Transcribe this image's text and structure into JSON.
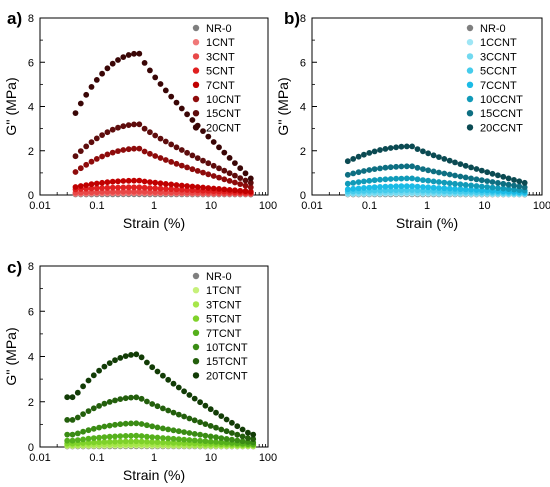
{
  "chart_data": [
    {
      "type": "scatter",
      "panel_label": "a)",
      "xlabel": "Strain (%)",
      "ylabel": "G'' (MPa)",
      "x_scale": "log",
      "xlim": [
        0.01,
        100
      ],
      "ylim": [
        0,
        8
      ],
      "x_ticks": [
        "0.01",
        "0.1",
        "1",
        "10",
        "100"
      ],
      "y_ticks": [
        "0",
        "2",
        "4",
        "6",
        "8"
      ],
      "legend_position": "top-right",
      "grid": false,
      "series": [
        {
          "name": "NR-0",
          "color": "#7f7f7f",
          "peak": 0.03,
          "base": 0.02,
          "tail": 0.02
        },
        {
          "name": "1CNT",
          "color": "#f07878",
          "peak": 0.08,
          "base": 0.05,
          "tail": 0.04
        },
        {
          "name": "3CNT",
          "color": "#e84848",
          "peak": 0.15,
          "base": 0.1,
          "tail": 0.06
        },
        {
          "name": "5CNT",
          "color": "#e02020",
          "peak": 0.35,
          "base": 0.25,
          "tail": 0.1
        },
        {
          "name": "7CNT",
          "color": "#c00000",
          "peak": 0.65,
          "base": 0.35,
          "tail": 0.15
        },
        {
          "name": "10CNT",
          "color": "#8e0b0b",
          "peak": 2.1,
          "base": 1.0,
          "tail": 0.35
        },
        {
          "name": "15CNT",
          "color": "#5e0c0c",
          "peak": 3.2,
          "base": 1.7,
          "tail": 0.55
        },
        {
          "name": "20CNT",
          "color": "#3a0606",
          "peak": 6.4,
          "base": 3.6,
          "tail": 0.75
        }
      ]
    },
    {
      "type": "scatter",
      "panel_label": "b)",
      "xlabel": "Strain (%)",
      "ylabel": "G'' (MPa)",
      "x_scale": "log",
      "xlim": [
        0.01,
        100
      ],
      "ylim": [
        0,
        8
      ],
      "x_ticks": [
        "0.01",
        "0.1",
        "1",
        "10",
        "100"
      ],
      "y_ticks": [
        "0",
        "2",
        "4",
        "6",
        "8"
      ],
      "legend_position": "top-right",
      "grid": false,
      "series": [
        {
          "name": "NR-0",
          "color": "#7f7f7f",
          "peak": 0.03,
          "base": 0.02,
          "tail": 0.02
        },
        {
          "name": "1CCNT",
          "color": "#9fe6f5",
          "peak": 0.06,
          "base": 0.04,
          "tail": 0.03
        },
        {
          "name": "3CCNT",
          "color": "#72d9f0",
          "peak": 0.12,
          "base": 0.08,
          "tail": 0.05
        },
        {
          "name": "5CCNT",
          "color": "#45ccec",
          "peak": 0.22,
          "base": 0.15,
          "tail": 0.08
        },
        {
          "name": "7CCNT",
          "color": "#1bbbe6",
          "peak": 0.4,
          "base": 0.25,
          "tail": 0.12
        },
        {
          "name": "10CCNT",
          "color": "#119ab8",
          "peak": 0.75,
          "base": 0.5,
          "tail": 0.2
        },
        {
          "name": "15CCNT",
          "color": "#0e6f82",
          "peak": 1.3,
          "base": 0.9,
          "tail": 0.35
        },
        {
          "name": "20CCNT",
          "color": "#0b4a52",
          "peak": 2.2,
          "base": 1.5,
          "tail": 0.55
        }
      ]
    },
    {
      "type": "scatter",
      "panel_label": "c)",
      "xlabel": "Strain (%)",
      "ylabel": "G'' (MPa)",
      "x_scale": "log",
      "xlim": [
        0.01,
        100
      ],
      "ylim": [
        0,
        8
      ],
      "x_ticks": [
        "0.01",
        "0.1",
        "1",
        "10",
        "100"
      ],
      "y_ticks": [
        "0",
        "2",
        "4",
        "6",
        "8"
      ],
      "legend_position": "top-right",
      "grid": false,
      "series": [
        {
          "name": "NR-0",
          "color": "#7f7f7f",
          "peak": 0.03,
          "base": 0.02,
          "tail": 0.02
        },
        {
          "name": "1TCNT",
          "color": "#c6f07a",
          "peak": 0.06,
          "base": 0.04,
          "tail": 0.03
        },
        {
          "name": "3TCNT",
          "color": "#a6e64a",
          "peak": 0.12,
          "base": 0.08,
          "tail": 0.05
        },
        {
          "name": "5TCNT",
          "color": "#7fd22a",
          "peak": 0.25,
          "base": 0.15,
          "tail": 0.08
        },
        {
          "name": "7TCNT",
          "color": "#55b01c",
          "peak": 0.5,
          "base": 0.28,
          "tail": 0.12
        },
        {
          "name": "10TCNT",
          "color": "#3a8c14",
          "peak": 1.05,
          "base": 0.55,
          "tail": 0.2
        },
        {
          "name": "15TCNT",
          "color": "#235f0c",
          "peak": 2.2,
          "base": 1.2,
          "tail": 0.35
        },
        {
          "name": "20TCNT",
          "color": "#123c06",
          "peak": 4.1,
          "base": 2.2,
          "tail": 0.55
        }
      ]
    }
  ]
}
